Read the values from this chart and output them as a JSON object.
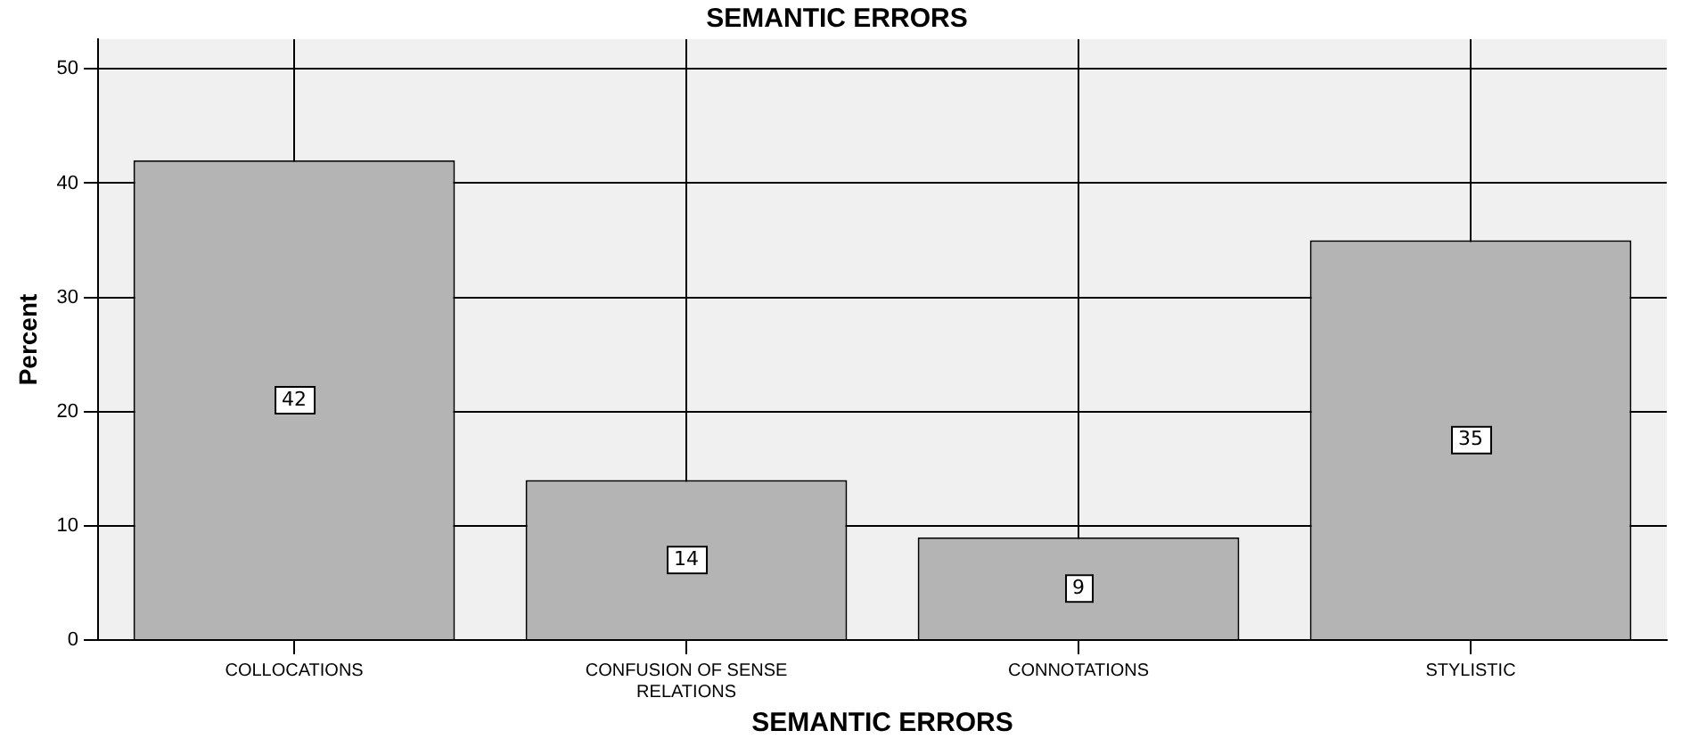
{
  "chart_data": {
    "type": "bar",
    "title": "SEMANTIC ERRORS",
    "xlabel": "SEMANTIC ERRORS",
    "ylabel": "Percent",
    "categories": [
      "COLLOCATIONS",
      "CONFUSION OF SENSE RELATIONS",
      "CONNOTATIONS",
      "STYLISTIC"
    ],
    "values": [
      42,
      14,
      9,
      35
    ],
    "color": "#b4b4b4",
    "ylim": [
      0,
      52.6
    ],
    "yticks": [
      0,
      10,
      20,
      30,
      40,
      50
    ],
    "grid": true,
    "data_labels": true
  }
}
